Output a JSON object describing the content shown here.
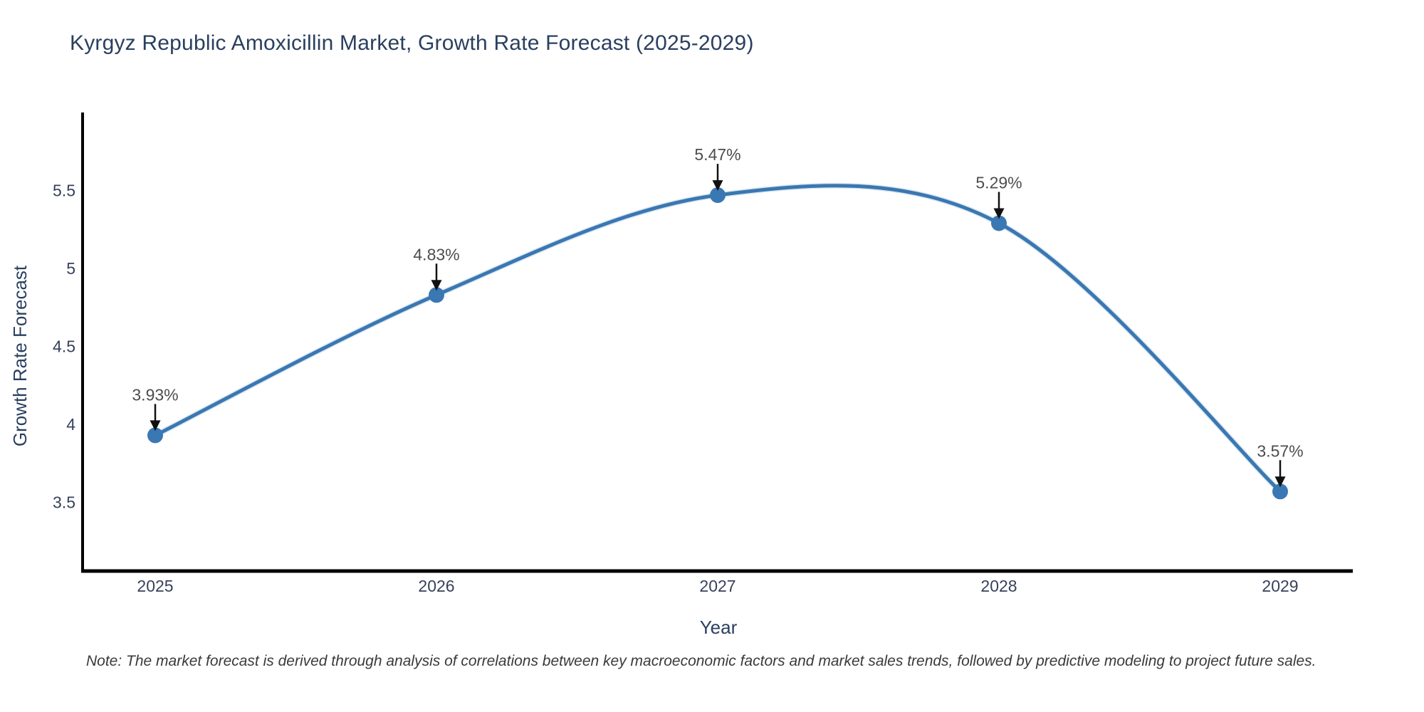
{
  "title": "Kyrgyz Republic Amoxicillin Market, Growth Rate Forecast (2025-2029)",
  "note": "Note: The market forecast is derived through analysis of correlations between key macroeconomic factors and market sales trends, followed by predictive modeling to project future sales.",
  "chart_data": {
    "type": "line",
    "title": "Kyrgyz Republic Amoxicillin Market, Growth Rate Forecast (2025-2029)",
    "xlabel": "Year",
    "ylabel": "Growth Rate Forecast",
    "categories": [
      "2025",
      "2026",
      "2027",
      "2028",
      "2029"
    ],
    "values": [
      3.93,
      4.83,
      5.47,
      5.29,
      3.57
    ],
    "point_labels": [
      "3.93%",
      "4.83%",
      "5.47%",
      "5.29%",
      "3.57%"
    ],
    "yticks": [
      3.5,
      4,
      4.5,
      5,
      5.5
    ],
    "ylim": [
      3.06,
      6.0
    ],
    "line_shape": "spline",
    "grid": false,
    "legend": "none",
    "colors": {
      "line": "#3b77b1",
      "line_halo": "#a9c9e4",
      "marker": "#3a78b3",
      "axis": "#000000",
      "tick_text": "#37415a",
      "axis_title_text": "#2a3f5f",
      "point_label_text": "#4d4d4d",
      "arrow": "#111111"
    }
  }
}
